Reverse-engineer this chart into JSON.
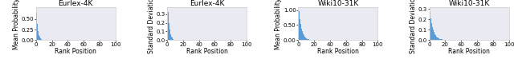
{
  "subplots": [
    {
      "title": "Eurlex-4K",
      "ylabel": "Mean Probability",
      "xlabel": "Rank Position",
      "xlim": [
        0,
        100
      ],
      "ylim": [
        0,
        0.78
      ],
      "yticks": [
        0.0,
        0.25,
        0.5
      ],
      "ytick_labels": [
        "0.00",
        "0.25",
        "0.50"
      ],
      "decay": 0.55,
      "scale": 0.65,
      "n_bars": 100
    },
    {
      "title": "Eurlex-4K",
      "ylabel": "Standard Deviation",
      "xlabel": "Rank Position",
      "xlim": [
        0,
        100
      ],
      "ylim": [
        0,
        0.38
      ],
      "yticks": [
        0.0,
        0.1,
        0.2,
        0.3
      ],
      "ytick_labels": [
        "0.0",
        "0.1",
        "0.2",
        "0.3"
      ],
      "decay": 0.5,
      "scale": 0.32,
      "n_bars": 100
    },
    {
      "title": "Wiki10-31K",
      "ylabel": "Mean Probability",
      "xlabel": "Rank Position",
      "xlim": [
        0,
        100
      ],
      "ylim": [
        0,
        1.1
      ],
      "yticks": [
        0.0,
        0.5,
        1.0
      ],
      "ytick_labels": [
        "0.00",
        "0.50",
        "1.00"
      ],
      "decay": 0.3,
      "scale": 0.96,
      "n_bars": 100
    },
    {
      "title": "Wiki10-31K",
      "ylabel": "Standard Deviation",
      "xlabel": "Rank Position",
      "xlim": [
        0,
        100
      ],
      "ylim": [
        0,
        0.32
      ],
      "yticks": [
        0.0,
        0.1,
        0.2,
        0.3
      ],
      "ytick_labels": [
        "0.0",
        "0.1",
        "0.2",
        "0.3"
      ],
      "decay": 0.25,
      "scale": 0.27,
      "n_bars": 100
    }
  ],
  "bar_color": "#5b9bd5",
  "title_fontsize": 6.5,
  "label_fontsize": 5.5,
  "tick_fontsize": 5.0,
  "fig_width": 6.4,
  "fig_height": 0.74,
  "dpi": 100
}
